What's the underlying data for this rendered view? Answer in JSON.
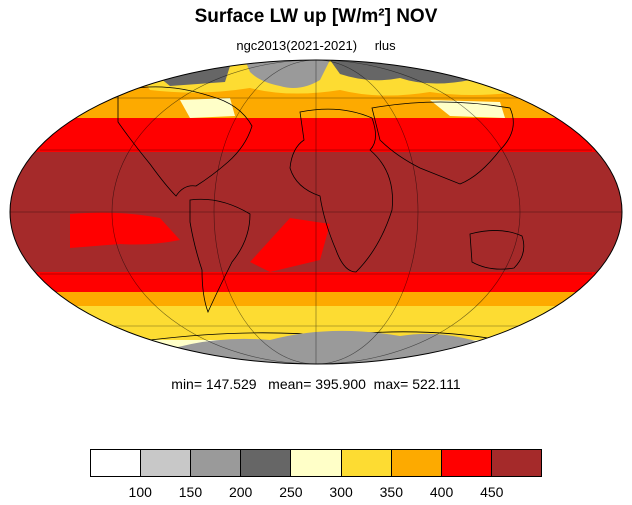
{
  "title": "Surface LW up [W/m²]  NOV",
  "subtitle": {
    "run": "ngc2013(2021-2021)",
    "variable": "rlus"
  },
  "stats": {
    "min": "147.529",
    "mean": "395.900",
    "max": "522.111"
  },
  "legend": {
    "tick_labels": [
      "100",
      "150",
      "200",
      "250",
      "300",
      "350",
      "400",
      "450"
    ],
    "colors": [
      "#ffffff",
      "#c8c8c8",
      "#9a9a9a",
      "#666666",
      "#ffffc8",
      "#fddc32",
      "#fdaa00",
      "#ff0000",
      "#a52a2a"
    ]
  }
}
